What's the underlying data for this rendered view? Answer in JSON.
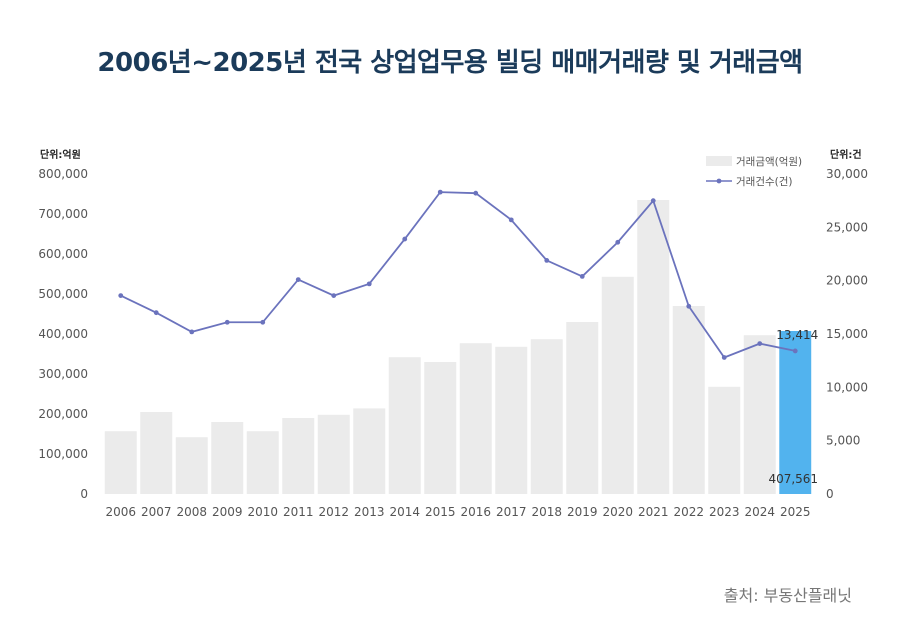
{
  "title": "2006년~2025년 전국 상업업무용 빌딩 매매거래량 및 거래금액",
  "unit_left": "단위:억원",
  "unit_right": "단위:건",
  "source": "출처: 부동산플래닛",
  "colors": {
    "bar": "#ebebeb",
    "bar_highlight": "#52b3ee",
    "line": "#6b73bd",
    "title": "#1b3b5a"
  },
  "chart_data": {
    "type": "bar+line",
    "categories": [
      "2006",
      "2007",
      "2008",
      "2009",
      "2010",
      "2011",
      "2012",
      "2013",
      "2014",
      "2015",
      "2016",
      "2017",
      "2018",
      "2019",
      "2020",
      "2021",
      "2022",
      "2023",
      "2024",
      "2025"
    ],
    "series": [
      {
        "name": "거래금액(억원)",
        "type": "bar",
        "axis": "left",
        "values": [
          157000,
          205000,
          142000,
          180000,
          157000,
          190000,
          198000,
          214000,
          342000,
          330000,
          377000,
          368000,
          387000,
          430000,
          543000,
          735000,
          470000,
          268000,
          397000,
          407561
        ]
      },
      {
        "name": "거래건수(건)",
        "type": "line",
        "axis": "right",
        "values": [
          18600,
          17000,
          15200,
          16100,
          16100,
          20100,
          18600,
          19700,
          23900,
          28300,
          28200,
          25700,
          21900,
          20400,
          23600,
          27500,
          17600,
          12800,
          14100,
          13414
        ]
      }
    ],
    "y_left": {
      "min": 0,
      "max": 800000,
      "ticks": [
        "0",
        "100,000",
        "200,000",
        "300,000",
        "400,000",
        "500,000",
        "600,000",
        "700,000",
        "800,000"
      ]
    },
    "y_right": {
      "min": 0,
      "max": 30000,
      "ticks": [
        "0",
        "5,000",
        "10,000",
        "15,000",
        "20,000",
        "25,000",
        "30,000"
      ]
    },
    "highlight_index": 19,
    "annotations": {
      "count_2025": "13,414",
      "amount_2025": "407,561"
    },
    "legend": {
      "position": "top-right",
      "items": [
        "거래금액(억원)",
        "거래건수(건)"
      ]
    },
    "grid": false
  }
}
